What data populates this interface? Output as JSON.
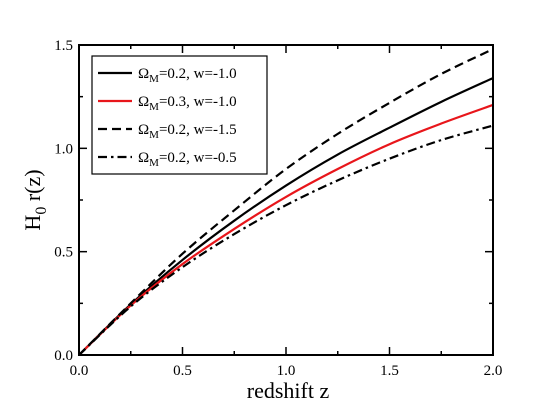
{
  "chart_data": {
    "type": "line",
    "title": "",
    "xlabel": "redshift z",
    "ylabel_main": "H",
    "ylabel_sub": "0",
    "ylabel_rest": " r(z)",
    "xlim": [
      0.0,
      2.0
    ],
    "ylim": [
      0.0,
      1.5
    ],
    "xticks": [
      "0.0",
      "0.5",
      "1.0",
      "1.5",
      "2.0"
    ],
    "yticks": [
      "0.0",
      "0.5",
      "1.0",
      "1.5"
    ],
    "legend_position": "top-left",
    "grid": false,
    "x": [
      0.0,
      0.25,
      0.5,
      0.75,
      1.0,
      1.25,
      1.5,
      1.75,
      2.0
    ],
    "series": [
      {
        "name_symbol": "Ω",
        "name_sub": "M",
        "name_rest": "=0.2, w=-1.0",
        "color": "#000000",
        "dash": "solid",
        "values": [
          0.0,
          0.245,
          0.46,
          0.65,
          0.82,
          0.97,
          1.1,
          1.225,
          1.34
        ]
      },
      {
        "name_symbol": "Ω",
        "name_sub": "M",
        "name_rest": "=0.3, w=-1.0",
        "color": "#e8161b",
        "dash": "solid",
        "values": [
          0.0,
          0.24,
          0.44,
          0.61,
          0.765,
          0.9,
          1.02,
          1.12,
          1.21
        ]
      },
      {
        "name_symbol": "Ω",
        "name_sub": "M",
        "name_rest": "=0.2, w=-1.5",
        "color": "#000000",
        "dash": "dashed",
        "values": [
          0.0,
          0.25,
          0.49,
          0.7,
          0.9,
          1.07,
          1.22,
          1.36,
          1.48
        ]
      },
      {
        "name_symbol": "Ω",
        "name_sub": "M",
        "name_rest": "=0.2, w=-0.5",
        "color": "#000000",
        "dash": "dashdot",
        "values": [
          0.0,
          0.235,
          0.425,
          0.585,
          0.725,
          0.845,
          0.95,
          1.04,
          1.11
        ]
      }
    ]
  }
}
